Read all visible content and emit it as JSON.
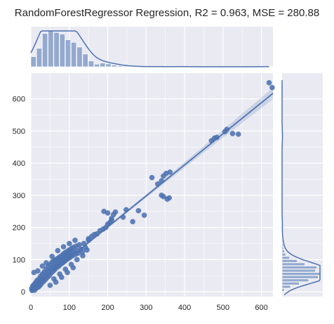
{
  "chart_data": {
    "type": "scatter",
    "title": "RandomForestRegressor Regression, R2 = 0.963, MSE = 280.88",
    "xlabel": "",
    "ylabel": "",
    "xlim": [
      0,
      630
    ],
    "ylim": [
      -15,
      680
    ],
    "grid": true,
    "xticks": [
      "0",
      "100",
      "200",
      "300",
      "400",
      "500",
      "600"
    ],
    "yticks": [
      "0",
      "100",
      "200",
      "300",
      "400",
      "500",
      "600"
    ],
    "regression_line": {
      "x0": 0,
      "y0": 8,
      "x1": 630,
      "y1": 617
    },
    "points": [
      [
        2,
        10
      ],
      [
        3,
        4
      ],
      [
        5,
        18
      ],
      [
        6,
        8
      ],
      [
        8,
        22
      ],
      [
        9,
        14
      ],
      [
        10,
        5
      ],
      [
        12,
        28
      ],
      [
        13,
        18
      ],
      [
        15,
        12
      ],
      [
        16,
        35
      ],
      [
        18,
        22
      ],
      [
        20,
        15
      ],
      [
        21,
        40
      ],
      [
        22,
        30
      ],
      [
        24,
        20
      ],
      [
        25,
        48
      ],
      [
        27,
        36
      ],
      [
        28,
        26
      ],
      [
        30,
        55
      ],
      [
        31,
        42
      ],
      [
        33,
        32
      ],
      [
        35,
        62
      ],
      [
        36,
        48
      ],
      [
        38,
        38
      ],
      [
        40,
        70
      ],
      [
        41,
        55
      ],
      [
        43,
        45
      ],
      [
        45,
        78
      ],
      [
        46,
        62
      ],
      [
        48,
        50
      ],
      [
        50,
        85
      ],
      [
        51,
        68
      ],
      [
        53,
        58
      ],
      [
        55,
        92
      ],
      [
        56,
        74
      ],
      [
        58,
        64
      ],
      [
        60,
        98
      ],
      [
        61,
        80
      ],
      [
        63,
        70
      ],
      [
        65,
        100
      ],
      [
        66,
        86
      ],
      [
        68,
        76
      ],
      [
        70,
        104
      ],
      [
        71,
        90
      ],
      [
        73,
        80
      ],
      [
        75,
        108
      ],
      [
        76,
        95
      ],
      [
        78,
        86
      ],
      [
        80,
        112
      ],
      [
        81,
        100
      ],
      [
        83,
        90
      ],
      [
        85,
        118
      ],
      [
        86,
        104
      ],
      [
        88,
        95
      ],
      [
        90,
        122
      ],
      [
        91,
        108
      ],
      [
        93,
        100
      ],
      [
        95,
        126
      ],
      [
        96,
        112
      ],
      [
        98,
        104
      ],
      [
        100,
        130
      ],
      [
        101,
        116
      ],
      [
        103,
        108
      ],
      [
        105,
        134
      ],
      [
        106,
        120
      ],
      [
        108,
        112
      ],
      [
        110,
        138
      ],
      [
        112,
        124
      ],
      [
        115,
        116
      ],
      [
        118,
        142
      ],
      [
        120,
        128
      ],
      [
        123,
        120
      ],
      [
        126,
        146
      ],
      [
        130,
        132
      ],
      [
        134,
        124
      ],
      [
        138,
        150
      ],
      [
        142,
        138
      ],
      [
        146,
        130
      ],
      [
        150,
        160
      ],
      [
        8,
        60
      ],
      [
        18,
        65
      ],
      [
        30,
        80
      ],
      [
        40,
        90
      ],
      [
        55,
        110
      ],
      [
        70,
        128
      ],
      [
        85,
        140
      ],
      [
        100,
        150
      ],
      [
        115,
        160
      ],
      [
        60,
        40
      ],
      [
        75,
        55
      ],
      [
        90,
        70
      ],
      [
        105,
        85
      ],
      [
        120,
        100
      ],
      [
        135,
        112
      ],
      [
        50,
        20
      ],
      [
        65,
        30
      ],
      [
        80,
        45
      ],
      [
        95,
        60
      ],
      [
        110,
        75
      ],
      [
        150,
        165
      ],
      [
        158,
        172
      ],
      [
        165,
        178
      ],
      [
        172,
        180
      ],
      [
        180,
        190
      ],
      [
        188,
        195
      ],
      [
        195,
        200
      ],
      [
        200,
        210
      ],
      [
        205,
        215
      ],
      [
        210,
        222
      ],
      [
        190,
        250
      ],
      [
        200,
        245
      ],
      [
        210,
        228
      ],
      [
        215,
        240
      ],
      [
        220,
        248
      ],
      [
        240,
        232
      ],
      [
        248,
        255
      ],
      [
        265,
        218
      ],
      [
        280,
        252
      ],
      [
        295,
        238
      ],
      [
        330,
        335
      ],
      [
        340,
        345
      ],
      [
        345,
        360
      ],
      [
        352,
        368
      ],
      [
        362,
        372
      ],
      [
        315,
        355
      ],
      [
        340,
        300
      ],
      [
        345,
        296
      ],
      [
        355,
        288
      ],
      [
        360,
        292
      ],
      [
        470,
        470
      ],
      [
        478,
        478
      ],
      [
        484,
        480
      ],
      [
        505,
        498
      ],
      [
        510,
        505
      ],
      [
        525,
        492
      ],
      [
        540,
        490
      ],
      [
        620,
        650
      ],
      [
        628,
        635
      ]
    ],
    "top_histogram": {
      "bin_start": 0,
      "bin_width": 15,
      "counts": [
        32,
        58,
        105,
        113,
        108,
        103,
        85,
        77,
        62,
        40,
        18,
        8,
        12,
        9,
        5,
        3,
        2,
        1,
        1,
        0,
        0,
        1,
        0,
        0,
        0,
        0,
        1,
        0,
        0,
        0,
        0,
        0,
        0,
        0,
        0,
        0,
        0,
        0,
        0,
        0,
        0,
        1
      ]
    },
    "right_histogram": {
      "bin_start": 0,
      "bin_width": 10,
      "counts": [
        6,
        22,
        45,
        70,
        95,
        100,
        88,
        92,
        60,
        40,
        20,
        10,
        6,
        4,
        3,
        2,
        1,
        1,
        0,
        0,
        1,
        1,
        0,
        0,
        0,
        0,
        0,
        0,
        0,
        0,
        0,
        0,
        0,
        0,
        0,
        0,
        0,
        0,
        0,
        0,
        0,
        0,
        0,
        0,
        0,
        0,
        0,
        1,
        1,
        1
      ]
    }
  },
  "colors": {
    "background": "#eaeaf2",
    "grid": "#ffffff",
    "accent": "#4c72b0",
    "text": "#262626"
  }
}
